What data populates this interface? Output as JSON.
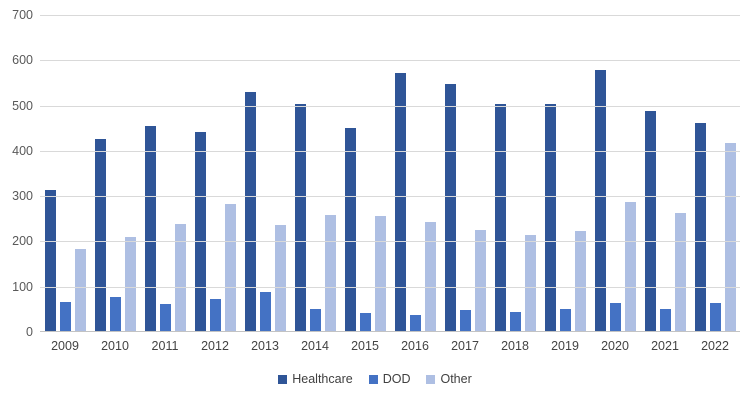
{
  "chart_data": {
    "type": "bar",
    "title": "",
    "categories": [
      "2009",
      "2010",
      "2011",
      "2012",
      "2013",
      "2014",
      "2015",
      "2016",
      "2017",
      "2018",
      "2019",
      "2020",
      "2021",
      "2022"
    ],
    "series": [
      {
        "name": "Healthcare",
        "color": "#2F5597",
        "values": [
          313,
          426,
          454,
          442,
          530,
          503,
          451,
          572,
          548,
          503,
          504,
          578,
          489,
          462
        ]
      },
      {
        "name": "DOD",
        "color": "#4472C4",
        "values": [
          66,
          78,
          62,
          73,
          88,
          51,
          41,
          38,
          49,
          44,
          51,
          64,
          51,
          64
        ]
      },
      {
        "name": "Other",
        "color": "#AEBFE3",
        "values": [
          184,
          210,
          239,
          282,
          236,
          258,
          256,
          243,
          225,
          215,
          223,
          288,
          263,
          417
        ]
      }
    ],
    "xlabel": "",
    "ylabel": "",
    "ylim": [
      0,
      700
    ],
    "ytick_interval": 100,
    "yticks": [
      "0",
      "100",
      "200",
      "300",
      "400",
      "500",
      "600",
      "700"
    ],
    "grid": true,
    "legend_position": "bottom-center",
    "colors": {
      "background": "#FFFFFF",
      "gridline": "#D9D9D9",
      "axis_line": "#C3C3C3",
      "tick_label": "#595959",
      "category_label": "#444444",
      "legend_text": "#404040"
    }
  }
}
